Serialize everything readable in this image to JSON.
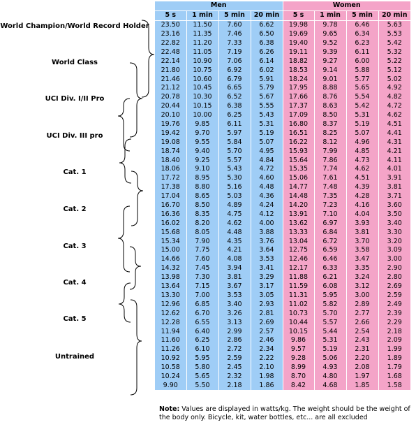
{
  "groups": [
    "Men",
    "Women"
  ],
  "columns": [
    "5 s",
    "1 min",
    "5 min",
    "20 min",
    "5 s",
    "1 min",
    "5 min",
    "20 min"
  ],
  "rows": [
    [
      "23.50",
      "11.50",
      "7.60",
      "6.62",
      "19.98",
      "9.78",
      "6.46",
      "5.63"
    ],
    [
      "23.16",
      "11.35",
      "7.46",
      "6.50",
      "19.69",
      "9.65",
      "6.34",
      "5.53"
    ],
    [
      "22.82",
      "11.20",
      "7.33",
      "6.38",
      "19.40",
      "9.52",
      "6.23",
      "5.42"
    ],
    [
      "22.48",
      "11.05",
      "7.19",
      "6.26",
      "19.11",
      "9.39",
      "6.11",
      "5.32"
    ],
    [
      "22.14",
      "10.90",
      "7.06",
      "6.14",
      "18.82",
      "9.27",
      "6.00",
      "5.22"
    ],
    [
      "21.80",
      "10.75",
      "6.92",
      "6.02",
      "18.53",
      "9.14",
      "5.88",
      "5.12"
    ],
    [
      "21.46",
      "10.60",
      "6.79",
      "5.91",
      "18.24",
      "9.01",
      "5.77",
      "5.02"
    ],
    [
      "21.12",
      "10.45",
      "6.65",
      "5.79",
      "17.95",
      "8.88",
      "5.65",
      "4.92"
    ],
    [
      "20.78",
      "10.30",
      "6.52",
      "5.67",
      "17.66",
      "8.76",
      "5.54",
      "4.82"
    ],
    [
      "20.44",
      "10.15",
      "6.38",
      "5.55",
      "17.37",
      "8.63",
      "5.42",
      "4.72"
    ],
    [
      "20.10",
      "10.00",
      "6.25",
      "5.43",
      "17.09",
      "8.50",
      "5.31",
      "4.62"
    ],
    [
      "19.76",
      "9.85",
      "6.11",
      "5.31",
      "16.80",
      "8.37",
      "5.19",
      "4.51"
    ],
    [
      "19.42",
      "9.70",
      "5.97",
      "5.19",
      "16.51",
      "8.25",
      "5.07",
      "4.41"
    ],
    [
      "19.08",
      "9.55",
      "5.84",
      "5.07",
      "16.22",
      "8.12",
      "4.96",
      "4.31"
    ],
    [
      "18.74",
      "9.40",
      "5.70",
      "4.95",
      "15.93",
      "7.99",
      "4.85",
      "4.21"
    ],
    [
      "18.40",
      "9.25",
      "5.57",
      "4.84",
      "15.64",
      "7.86",
      "4.73",
      "4.11"
    ],
    [
      "18.06",
      "9.10",
      "5.43",
      "4.72",
      "15.35",
      "7.74",
      "4.62",
      "4.01"
    ],
    [
      "17.72",
      "8.95",
      "5.30",
      "4.60",
      "15.06",
      "7.61",
      "4.51",
      "3.91"
    ],
    [
      "17.38",
      "8.80",
      "5.16",
      "4.48",
      "14.77",
      "7.48",
      "4.39",
      "3.81"
    ],
    [
      "17.04",
      "8.65",
      "5.03",
      "4.36",
      "14.48",
      "7.35",
      "4.28",
      "3.71"
    ],
    [
      "16.70",
      "8.50",
      "4.89",
      "4.24",
      "14.20",
      "7.23",
      "4.16",
      "3.60"
    ],
    [
      "16.36",
      "8.35",
      "4.75",
      "4.12",
      "13.91",
      "7.10",
      "4.04",
      "3.50"
    ],
    [
      "16.02",
      "8.20",
      "4.62",
      "4.00",
      "13.62",
      "6.97",
      "3.93",
      "3.40"
    ],
    [
      "15.68",
      "8.05",
      "4.48",
      "3.88",
      "13.33",
      "6.84",
      "3.81",
      "3.30"
    ],
    [
      "15.34",
      "7.90",
      "4.35",
      "3.76",
      "13.04",
      "6.72",
      "3.70",
      "3.20"
    ],
    [
      "15.00",
      "7.75",
      "4.21",
      "3.64",
      "12.75",
      "6.59",
      "3.58",
      "3.09"
    ],
    [
      "14.66",
      "7.60",
      "4.08",
      "3.53",
      "12.46",
      "6.46",
      "3.47",
      "3.00"
    ],
    [
      "14.32",
      "7.45",
      "3.94",
      "3.41",
      "12.17",
      "6.33",
      "3.35",
      "2.90"
    ],
    [
      "13.98",
      "7.30",
      "3.81",
      "3.29",
      "11.88",
      "6.21",
      "3.24",
      "2.80"
    ],
    [
      "13.64",
      "7.15",
      "3.67",
      "3.17",
      "11.59",
      "6.08",
      "3.12",
      "2.69"
    ],
    [
      "13.30",
      "7.00",
      "3.53",
      "3.05",
      "11.31",
      "5.95",
      "3.00",
      "2.59"
    ],
    [
      "12.96",
      "6.85",
      "3.40",
      "2.93",
      "11.02",
      "5.82",
      "2.89",
      "2.49"
    ],
    [
      "12.62",
      "6.70",
      "3.26",
      "2.81",
      "10.73",
      "5.70",
      "2.77",
      "2.39"
    ],
    [
      "12.28",
      "6.55",
      "3.13",
      "2.69",
      "10.44",
      "5.57",
      "2.66",
      "2.29"
    ],
    [
      "11.94",
      "6.40",
      "2.99",
      "2.57",
      "10.15",
      "5.44",
      "2.54",
      "2.18"
    ],
    [
      "11.60",
      "6.25",
      "2.86",
      "2.46",
      "9.86",
      "5.31",
      "2.43",
      "2.09"
    ],
    [
      "11.26",
      "6.10",
      "2.72",
      "2.34",
      "9.57",
      "5.19",
      "2.31",
      "1.99"
    ],
    [
      "10.92",
      "5.95",
      "2.59",
      "2.22",
      "9.28",
      "5.06",
      "2.20",
      "1.89"
    ],
    [
      "10.58",
      "5.80",
      "2.45",
      "2.10",
      "8.99",
      "4.93",
      "2.08",
      "1.79"
    ],
    [
      "10.24",
      "5.65",
      "2.32",
      "1.98",
      "8.70",
      "4.80",
      "1.97",
      "1.68"
    ],
    [
      "9.90",
      "5.50",
      "2.18",
      "1.86",
      "8.42",
      "4.68",
      "1.85",
      "1.58"
    ]
  ],
  "categories": [
    {
      "label": "World Champion/World Record Holder"
    },
    {
      "label": "World Class"
    },
    {
      "label": "UCI Div. I/II Pro"
    },
    {
      "label": "UCI Div. III pro"
    },
    {
      "label": "Cat. 1"
    },
    {
      "label": "Cat. 2"
    },
    {
      "label": "Cat. 3"
    },
    {
      "label": "Cat. 4"
    },
    {
      "label": "Cat. 5"
    },
    {
      "label": "Untrained"
    }
  ],
  "note": {
    "label": "Note:",
    "text": "Values are displayed in watts/kg.  The weight should be the weight of the body only.  Bicycle, kit, water bottles, etc... are all excluded"
  },
  "colors": {
    "men": "#9fcdf6",
    "women": "#f4a4c8"
  }
}
